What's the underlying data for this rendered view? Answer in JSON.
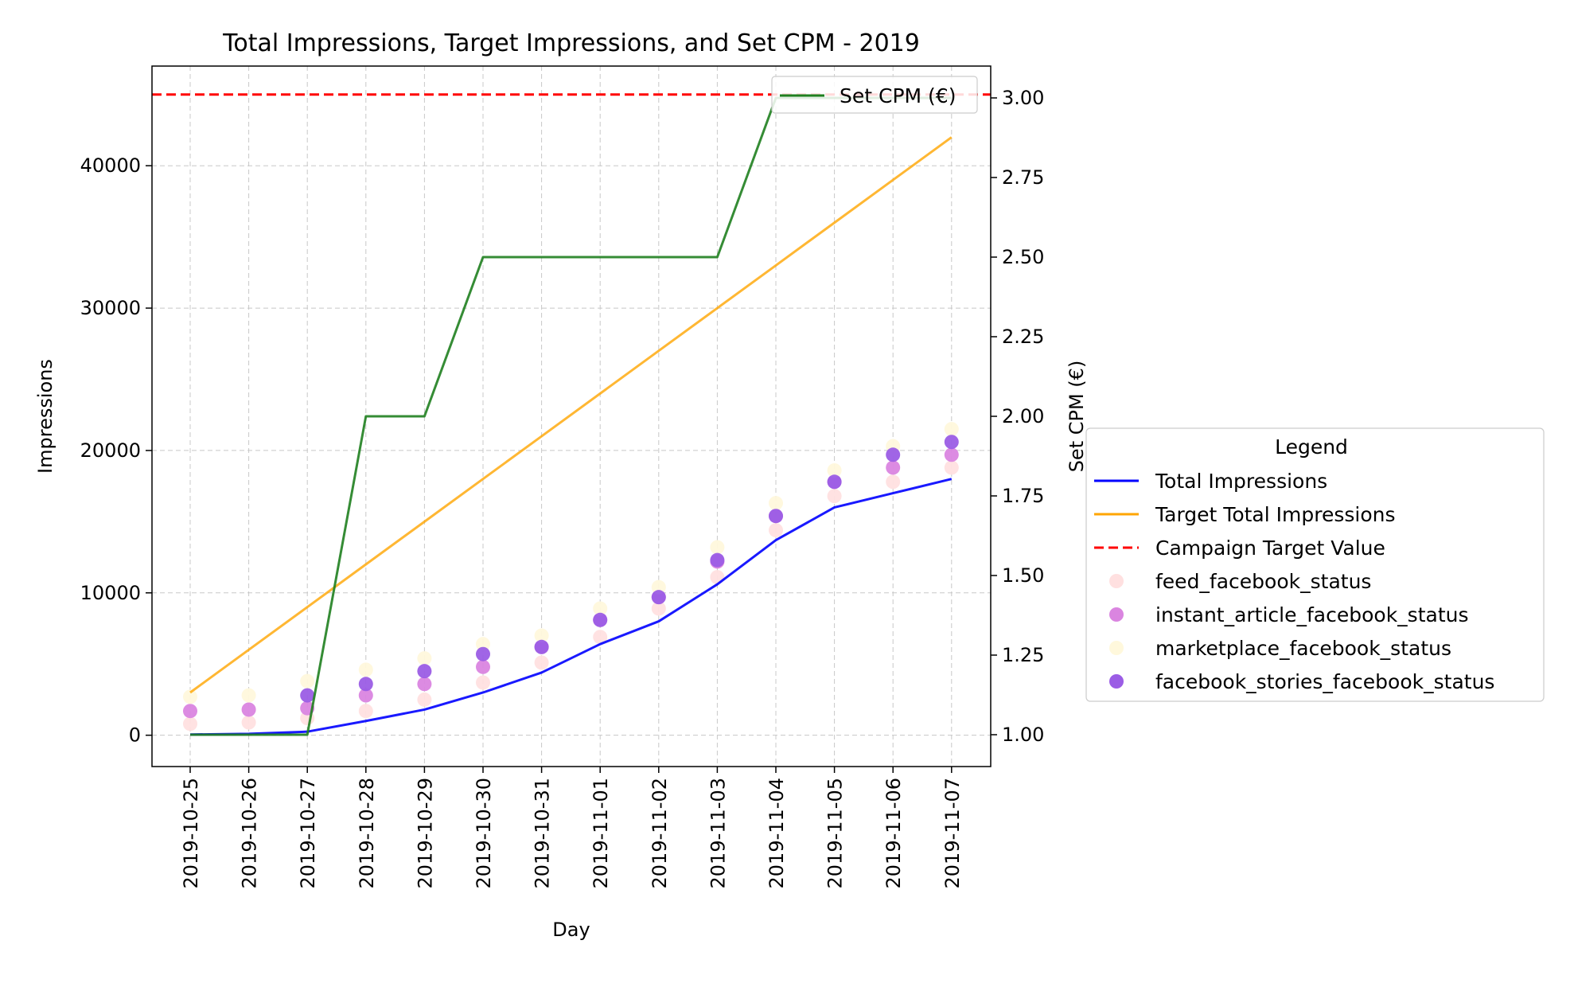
{
  "chart_data": {
    "type": "line",
    "title": "Total Impressions, Target Impressions, and Set CPM - 2019",
    "xlabel": "Day",
    "ylabel": "Impressions",
    "y2label": "Set CPM (€)",
    "categories": [
      "2019-10-25",
      "2019-10-26",
      "2019-10-27",
      "2019-10-28",
      "2019-10-29",
      "2019-10-30",
      "2019-10-31",
      "2019-11-01",
      "2019-11-02",
      "2019-11-03",
      "2019-11-04",
      "2019-11-05",
      "2019-11-06",
      "2019-11-07"
    ],
    "ylim": [
      -2200,
      47000
    ],
    "y2lim": [
      0.9,
      3.1
    ],
    "yticks": [
      0,
      10000,
      20000,
      30000,
      40000
    ],
    "y2ticks": [
      "1.00",
      "1.25",
      "1.50",
      "1.75",
      "2.00",
      "2.25",
      "2.50",
      "2.75",
      "3.00"
    ],
    "grid": true,
    "series": [
      {
        "name": "Total Impressions",
        "kind": "line",
        "axis": "left",
        "color": "#0000ff",
        "values": [
          50,
          100,
          250,
          1000,
          1800,
          3000,
          4400,
          6400,
          8000,
          10600,
          13700,
          16000,
          17000,
          18000
        ]
      },
      {
        "name": "Target Total Impressions",
        "kind": "line",
        "axis": "left",
        "color": "#ffa500",
        "values": [
          3000,
          6000,
          9000,
          12000,
          15000,
          18000,
          21000,
          24000,
          27000,
          30000,
          33000,
          36000,
          39000,
          42000
        ]
      },
      {
        "name": "Campaign Target Value",
        "kind": "hline",
        "axis": "left",
        "color": "#ff0000",
        "value": 45000
      },
      {
        "name": "feed_facebook_status",
        "kind": "scatter",
        "axis": "left",
        "color": "#ffe0e0",
        "values": [
          800,
          900,
          1200,
          1700,
          2500,
          3700,
          5100,
          6900,
          8900,
          11100,
          14400,
          16800,
          17800,
          18800
        ]
      },
      {
        "name": "instant_article_facebook_status",
        "kind": "scatter",
        "axis": "left",
        "color": "#da85e0",
        "values": [
          1700,
          1800,
          1900,
          2800,
          3600,
          4800,
          6200,
          8100,
          9700,
          12200,
          15400,
          17800,
          18800,
          19700
        ]
      },
      {
        "name": "marketplace_facebook_status",
        "kind": "scatter",
        "axis": "left",
        "color": "#fff8dc",
        "values": [
          2700,
          2800,
          3800,
          4600,
          5400,
          6400,
          7000,
          8900,
          10400,
          13200,
          16300,
          18600,
          20300,
          21500
        ]
      },
      {
        "name": "facebook_stories_facebook_status",
        "kind": "scatter",
        "axis": "left",
        "color": "#9b5de5",
        "values": [
          null,
          null,
          2800,
          3600,
          4500,
          5700,
          6200,
          8100,
          9700,
          12300,
          15400,
          17800,
          19700,
          20600
        ]
      },
      {
        "name": "Set CPM (€)",
        "kind": "line",
        "axis": "right",
        "color": "#1f801f",
        "values": [
          1.0,
          1.0,
          1.0,
          2.0,
          2.0,
          2.5,
          2.5,
          2.5,
          2.5,
          2.5,
          3.0,
          3.0,
          3.0,
          3.0
        ]
      }
    ],
    "legend_title": "Legend",
    "legend_items": [
      "Total Impressions",
      "Target Total Impressions",
      "Campaign Target Value",
      "feed_facebook_status",
      "instant_article_facebook_status",
      "marketplace_facebook_status",
      "facebook_stories_facebook_status"
    ],
    "legend2_items": [
      "Set CPM (€)"
    ],
    "legend_placement": "outside right",
    "legend2_placement": "upper right"
  }
}
